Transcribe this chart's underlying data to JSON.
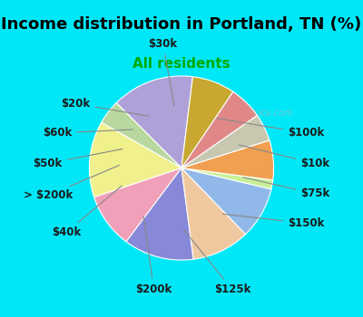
{
  "title": "Income distribution in Portland, TN (%)",
  "subtitle": "All residents",
  "watermark": "City-Data.com",
  "labels": [
    "$100k",
    "$10k",
    "$75k",
    "$150k",
    "$125k",
    "$200k",
    "$40k",
    "> $200k",
    "$50k",
    "$60k",
    "$20k",
    "$30k"
  ],
  "values": [
    13.5,
    4.0,
    12.5,
    9.0,
    11.5,
    9.5,
    8.5,
    1.5,
    6.5,
    4.5,
    5.5,
    7.0
  ],
  "colors": [
    "#b0a0d8",
    "#b8d8a0",
    "#f0f08c",
    "#f0a0b8",
    "#8888d8",
    "#f0c8a0",
    "#90b8e8",
    "#c8f098",
    "#f0a050",
    "#c8c8b0",
    "#e08888",
    "#c8a830"
  ],
  "background_top": "#00e8f8",
  "background_chart": "#e8f4ec",
  "title_color": "#000000",
  "subtitle_color": "#00aa00",
  "label_fontsize": 8.5,
  "title_fontsize": 13,
  "subtitle_fontsize": 11,
  "startangle": 83
}
